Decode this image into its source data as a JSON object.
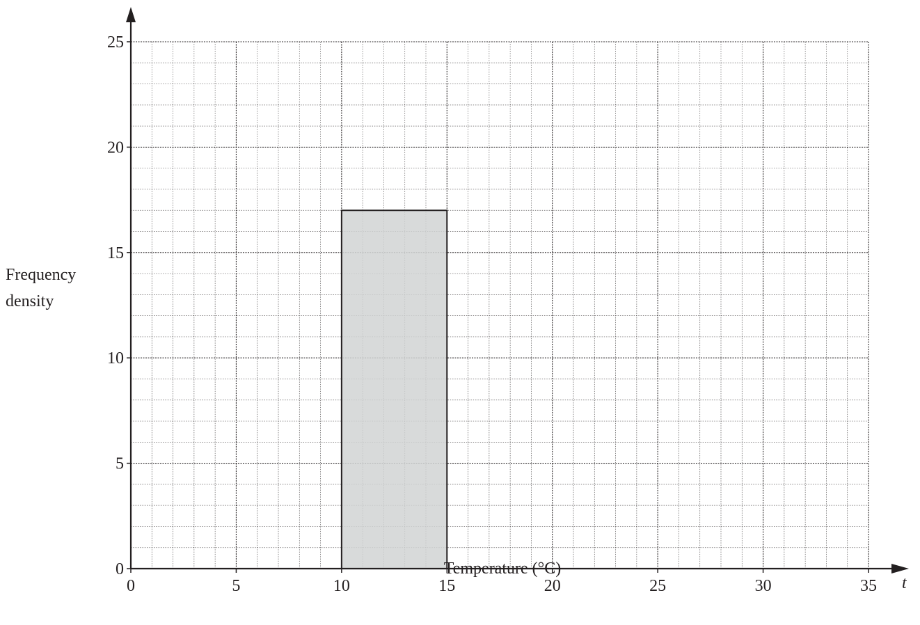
{
  "chart_data": {
    "type": "bar",
    "subtype": "histogram",
    "title": "",
    "xlabel": "Temperature (°C)",
    "ylabel_lines": [
      "Frequency",
      "density"
    ],
    "x_axis_variable": "t",
    "xlim": [
      0,
      35
    ],
    "ylim": [
      0,
      25
    ],
    "x_ticks": [
      "0",
      "5",
      "10",
      "15",
      "20",
      "25",
      "30",
      "35"
    ],
    "y_ticks": [
      "0",
      "5",
      "10",
      "15",
      "20",
      "25"
    ],
    "x_tick_values": [
      0,
      5,
      10,
      15,
      20,
      25,
      30,
      35
    ],
    "y_tick_values": [
      0,
      5,
      10,
      15,
      20,
      25
    ],
    "grid": true,
    "grid_minor_step": 1,
    "bars": [
      {
        "x_start": 10,
        "x_end": 15,
        "value": 17
      }
    ],
    "colors": {
      "bar_fill": "#d1d3d4",
      "ink": "#231f20",
      "grid": "#231f20"
    }
  }
}
